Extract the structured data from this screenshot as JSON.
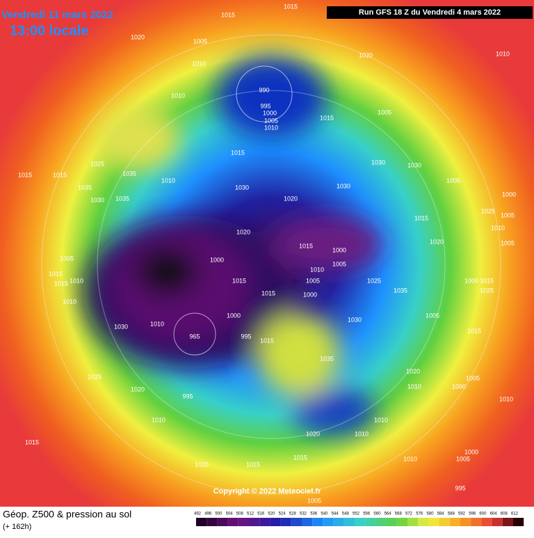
{
  "map": {
    "date": "Vendredi 11 mars 2022",
    "time": "13:00 locale",
    "run": "Run GFS 18 Z du Vendredi 4 mars 2022",
    "copyright": "Copyright © 2022 Meteociel.fr",
    "legend_title": "Géop. Z500 & pression au sol",
    "legend_subtitle": "(+ 162h)",
    "colorbar_ticks": [
      492,
      496,
      500,
      504,
      508,
      512,
      516,
      520,
      524,
      528,
      532,
      536,
      540,
      544,
      548,
      552,
      556,
      560,
      564,
      568,
      572,
      576,
      580,
      584,
      588,
      592,
      596,
      600,
      604,
      608,
      612
    ],
    "pressure_labels": [
      1015,
      1015,
      1020,
      1005,
      1010,
      1010,
      990,
      995,
      1000,
      1005,
      1010,
      1020,
      1010,
      1005,
      1015,
      1015,
      1030,
      1030,
      1005,
      1000,
      1025,
      1035,
      1035,
      1015,
      1015,
      1010,
      1030,
      1030,
      1020,
      1035,
      1030,
      1020,
      1015,
      1020,
      1015,
      1000,
      1005,
      1000,
      1005,
      1015,
      1015,
      1010,
      1010,
      1010,
      1005,
      1015,
      1015,
      1000,
      1025,
      1035,
      1000,
      1030,
      965,
      1010,
      995,
      1015,
      1030,
      1005,
      1035,
      1025,
      1020,
      995,
      1010,
      1020,
      1010,
      1000,
      1005,
      1010,
      1010,
      1020,
      1010,
      1015,
      1020,
      1015,
      1015,
      1010,
      1005,
      1000,
      995,
      1005,
      1025,
      1005,
      1010,
      1005,
      1000,
      1015,
      1025,
      1015
    ]
  }
}
